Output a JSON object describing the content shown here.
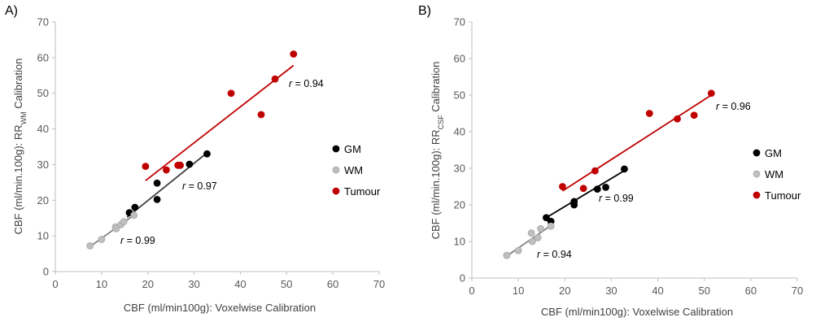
{
  "chart_data": [
    {
      "type": "scatter",
      "panel_label": "A)",
      "xlabel": "CBF (ml/min100g):  Voxelwise Calibration",
      "ylabel_parts": {
        "pre": "CBF (ml/min.100g):  RR",
        "sub": "WM",
        "post": " Calibration"
      },
      "xlim": [
        0,
        70
      ],
      "ylim": [
        0,
        70
      ],
      "xticks": [
        "0",
        "10",
        "20",
        "30",
        "40",
        "50",
        "60",
        "70"
      ],
      "yticks": [
        "0",
        "10",
        "20",
        "30",
        "40",
        "50",
        "60",
        "70"
      ],
      "series": [
        {
          "name": "GM",
          "color": "#000000",
          "x": [
            16,
            17.2,
            22,
            22,
            27,
            29,
            32.8
          ],
          "y": [
            16.5,
            18,
            24.8,
            20.2,
            29.8,
            30.1,
            33
          ],
          "fit": {
            "x": [
              15.5,
              32.8
            ],
            "y": [
              15.2,
              33.3
            ]
          },
          "r_label": {
            "prefix": "r",
            "value": " = 0.97"
          }
        },
        {
          "name": "WM",
          "color": "#bfbfbf",
          "x": [
            7.5,
            10,
            13,
            13.2,
            14.2,
            14.8,
            17
          ],
          "y": [
            7.2,
            9,
            12.5,
            12,
            13.2,
            14,
            15.8
          ],
          "fit": {
            "x": [
              7.5,
              17.5
            ],
            "y": [
              7.0,
              16.3
            ]
          },
          "r_label": {
            "prefix": "r",
            "value": " = 0.99"
          }
        },
        {
          "name": "Tumour",
          "color": "#c00000",
          "x": [
            19.5,
            24,
            26.5,
            27,
            38,
            44.5,
            47.5,
            51.5
          ],
          "y": [
            29.5,
            28.5,
            29.8,
            29.8,
            50,
            44,
            54,
            61
          ],
          "fit": {
            "x": [
              19.5,
              51.5
            ],
            "y": [
              25.5,
              57.8
            ]
          },
          "r_label": {
            "prefix": "r",
            "value": " = 0.94"
          }
        }
      ]
    },
    {
      "type": "scatter",
      "panel_label": "B)",
      "xlabel": "CBF (ml/min100g):  Voxelwise Calibration",
      "ylabel_parts": {
        "pre": "CBF (ml/min.100g):  RR",
        "sub": "CSF",
        "post": " Calibration"
      },
      "xlim": [
        0,
        70
      ],
      "ylim": [
        0,
        70
      ],
      "xticks": [
        "0",
        "10",
        "20",
        "30",
        "40",
        "50",
        "60",
        "70"
      ],
      "yticks": [
        "0",
        "10",
        "20",
        "30",
        "40",
        "50",
        "60",
        "70"
      ],
      "series": [
        {
          "name": "GM",
          "color": "#000000",
          "x": [
            16,
            17,
            22,
            22,
            27,
            28.8,
            32.8
          ],
          "y": [
            16.5,
            15.5,
            20.9,
            20,
            24.3,
            24.8,
            29.8
          ],
          "fit": {
            "x": [
              16,
              33
            ],
            "y": [
              16.5,
              29.5
            ]
          },
          "r_label": {
            "prefix": "r",
            "value": " = 0.99"
          }
        },
        {
          "name": "WM",
          "color": "#bfbfbf",
          "x": [
            7.5,
            10,
            12.8,
            13,
            14.2,
            14.8,
            17
          ],
          "y": [
            6.2,
            7.5,
            12.3,
            10,
            11,
            13.5,
            14.2
          ],
          "fit": {
            "x": [
              7.5,
              17.5
            ],
            "y": [
              6.0,
              14.8
            ]
          },
          "r_label": {
            "prefix": "r",
            "value": " = 0.94"
          }
        },
        {
          "name": "Tumour",
          "color": "#c00000",
          "x": [
            19.5,
            24,
            26.5,
            38.2,
            44.2,
            47.8,
            51.5
          ],
          "y": [
            25,
            24.5,
            29.3,
            45,
            43.5,
            44.5,
            50.5
          ],
          "fit": {
            "x": [
              19.5,
              51.5
            ],
            "y": [
              23.8,
              50.0
            ]
          },
          "r_label": {
            "prefix": "r",
            "value": " = 0.96"
          }
        }
      ]
    }
  ]
}
